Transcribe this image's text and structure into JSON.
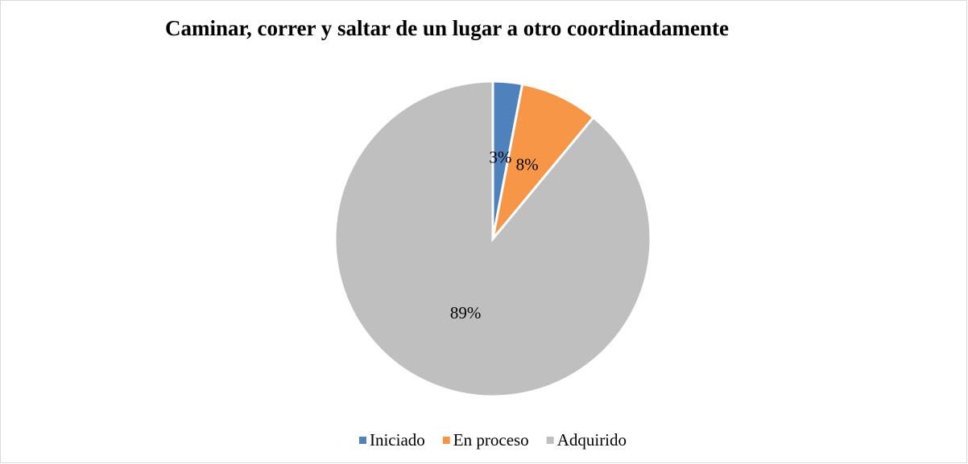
{
  "chart_data": {
    "type": "pie",
    "title": "Caminar, correr y saltar de un lugar a otro coordinadamente",
    "categories": [
      "Iniciado",
      "En proceso",
      "Adquirido"
    ],
    "values": [
      3,
      8,
      89
    ],
    "value_labels": [
      "3%",
      "8%",
      "89%"
    ],
    "colors": [
      "#4f81bd",
      "#f79646",
      "#bfbfbf"
    ],
    "legend": "bottom"
  }
}
